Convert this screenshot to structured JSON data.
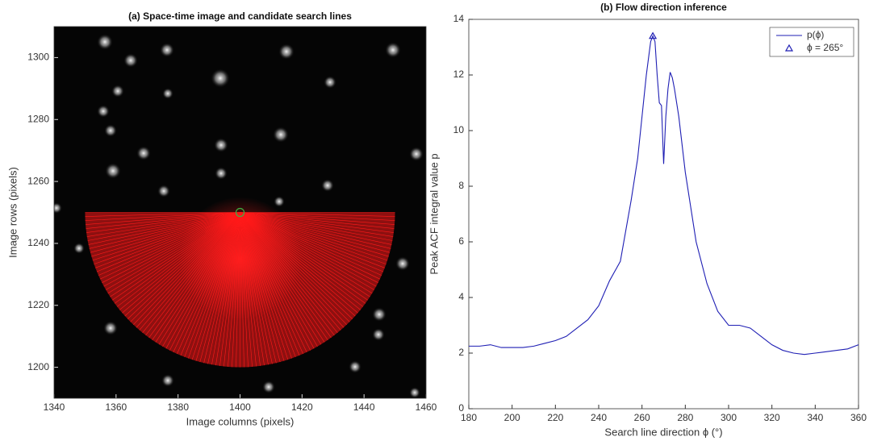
{
  "chart_data": [
    {
      "type": "image",
      "title": "(a) Space-time image and candidate search lines",
      "xlabel": "Image columns (pixels)",
      "ylabel": "Image rows (pixels)",
      "xlim": [
        1340,
        1460
      ],
      "ylim": [
        1190,
        1310
      ],
      "xticks": [
        1340,
        1360,
        1380,
        1400,
        1420,
        1440,
        1460
      ],
      "yticks": [
        1200,
        1220,
        1240,
        1260,
        1280,
        1300
      ],
      "search_center": {
        "x": 1400,
        "y": 1250,
        "color": "#3cb043"
      },
      "search_radius": 50,
      "fan_color": "#ff1a1a"
    },
    {
      "type": "line",
      "title": "(b) Flow direction inference",
      "xlabel": "Search line direction ϕ (°)",
      "ylabel": "Peak ACF integral value p",
      "xlim": [
        180,
        360
      ],
      "ylim": [
        0,
        14
      ],
      "xticks": [
        180,
        200,
        220,
        240,
        260,
        280,
        300,
        320,
        340,
        360
      ],
      "yticks": [
        0,
        2,
        4,
        6,
        8,
        10,
        12,
        14
      ],
      "x": [
        180,
        185,
        190,
        195,
        200,
        205,
        210,
        215,
        220,
        225,
        230,
        235,
        240,
        245,
        250,
        255,
        258,
        260,
        262,
        264,
        265,
        266,
        267,
        268,
        269,
        270,
        271,
        272,
        273,
        274,
        275,
        277,
        280,
        285,
        290,
        295,
        300,
        305,
        310,
        315,
        320,
        325,
        330,
        335,
        340,
        345,
        350,
        355,
        360
      ],
      "series": [
        {
          "name": "p(ϕ)",
          "color": "#1f1fb4",
          "values": [
            2.25,
            2.25,
            2.3,
            2.2,
            2.2,
            2.2,
            2.25,
            2.35,
            2.45,
            2.6,
            2.9,
            3.2,
            3.7,
            4.6,
            5.3,
            7.5,
            9,
            10.5,
            12,
            13.2,
            13.4,
            13.2,
            12,
            11,
            10.9,
            8.8,
            10.5,
            11.5,
            12.1,
            11.9,
            11.5,
            10.5,
            8.5,
            6,
            4.5,
            3.5,
            3.0,
            3.0,
            2.9,
            2.6,
            2.3,
            2.1,
            2.0,
            1.95,
            2.0,
            2.05,
            2.1,
            2.15,
            2.3
          ]
        }
      ],
      "peak": {
        "name": "ϕ = 265°",
        "x": 265,
        "y": 13.4,
        "color": "#1f1fb4"
      },
      "legend": "upper right"
    }
  ]
}
